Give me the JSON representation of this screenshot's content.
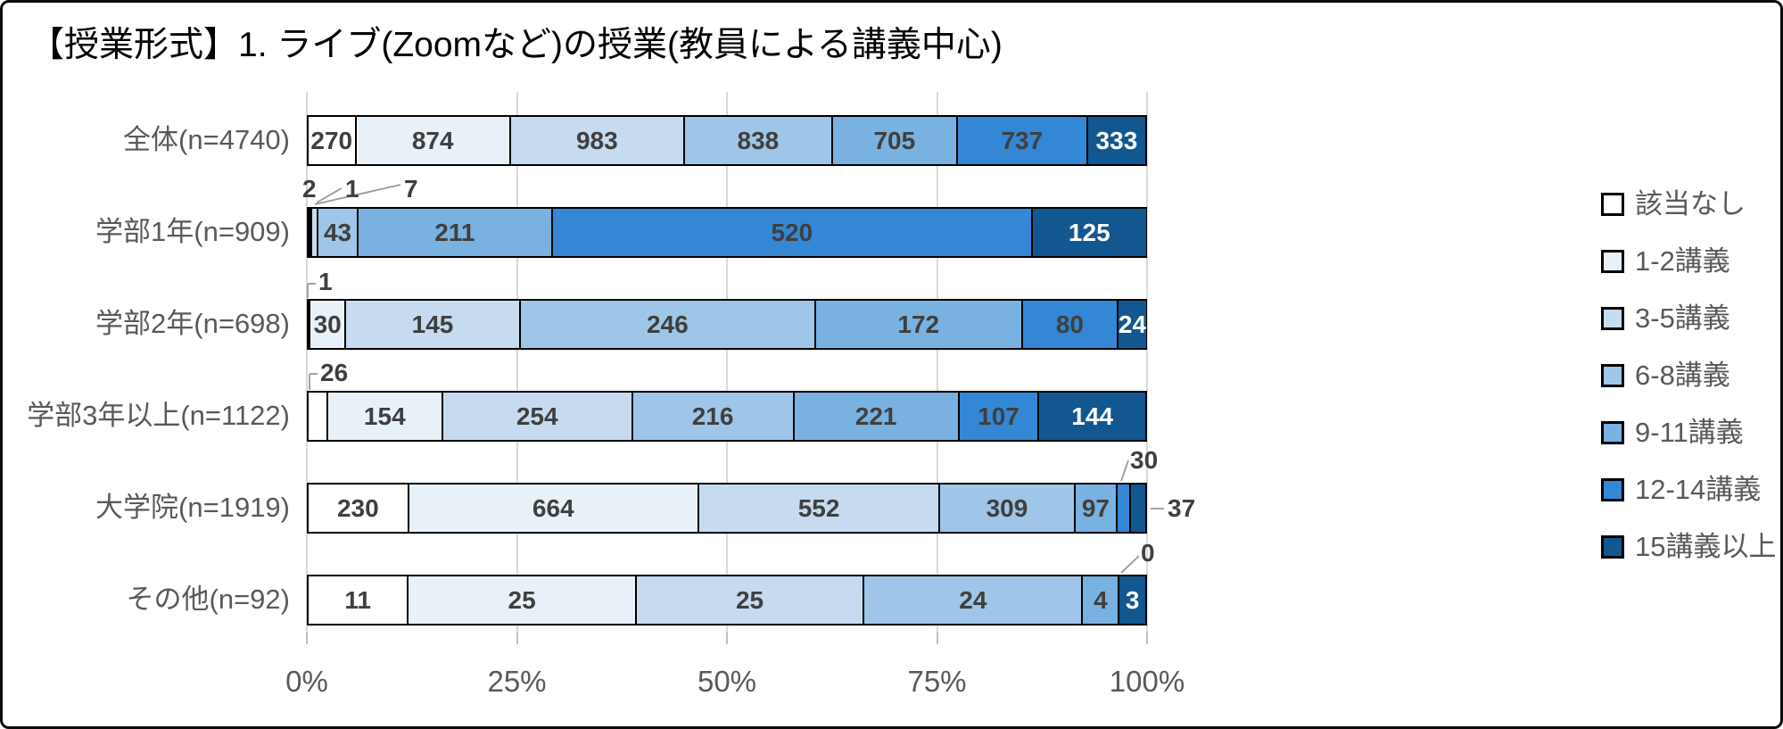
{
  "title": "【授業形式】1. ライブ(Zoomなど)の授業(教員による講義中心)",
  "chart_data": {
    "type": "bar",
    "orientation": "horizontal",
    "stacking": "100%",
    "title": "【授業形式】1. ライブ(Zoomなど)の授業(教員による講義中心)",
    "categories": [
      "全体(n=4740)",
      "学部1年(n=909)",
      "学部2年(n=698)",
      "学部3年以上(n=1122)",
      "大学院(n=1919)",
      "その他(n=92)"
    ],
    "totals": [
      4740,
      909,
      698,
      1122,
      1919,
      92
    ],
    "series": [
      {
        "name": "該当なし",
        "color": "#FFFFFF",
        "values": [
          270,
          2,
          1,
          26,
          230,
          11
        ]
      },
      {
        "name": "1-2講義",
        "color": "#E9F1F8",
        "values": [
          874,
          1,
          30,
          154,
          664,
          25
        ]
      },
      {
        "name": "3-5講義",
        "color": "#C6DBF0",
        "values": [
          983,
          7,
          145,
          254,
          552,
          25
        ]
      },
      {
        "name": "6-8講義",
        "color": "#9FC6E8",
        "values": [
          838,
          43,
          246,
          216,
          309,
          24
        ]
      },
      {
        "name": "9-11講義",
        "color": "#79B1E1",
        "values": [
          705,
          211,
          172,
          221,
          97,
          4
        ]
      },
      {
        "name": "12-14講義",
        "color": "#3387D4",
        "values": [
          737,
          520,
          80,
          107,
          30,
          0
        ]
      },
      {
        "name": "15講義以上",
        "color": "#12578F",
        "values": [
          333,
          125,
          24,
          144,
          37,
          3
        ]
      }
    ],
    "x_ticks": [
      "0%",
      "25%",
      "50%",
      "75%",
      "100%"
    ],
    "xlim": [
      0,
      100
    ],
    "grid": true,
    "legend_position": "right",
    "callout_values": [
      {
        "category": "学部1年(n=909)",
        "series": "該当なし",
        "value": 2
      },
      {
        "category": "学部1年(n=909)",
        "series": "1-2講義",
        "value": 1
      },
      {
        "category": "学部1年(n=909)",
        "series": "3-5講義",
        "value": 7
      },
      {
        "category": "学部2年(n=698)",
        "series": "該当なし",
        "value": 1
      },
      {
        "category": "学部3年以上(n=1122)",
        "series": "該当なし",
        "value": 26
      },
      {
        "category": "大学院(n=1919)",
        "series": "12-14講義",
        "value": 30
      },
      {
        "category": "大学院(n=1919)",
        "series": "15講義以上",
        "value": 37
      },
      {
        "category": "その他(n=92)",
        "series": "12-14講義",
        "value": 0
      }
    ]
  },
  "colors": {
    "grid": "#D9D9D9",
    "tick": "#BFBFBF",
    "axis_text": "#595959",
    "data_label": "#3F3F3F",
    "data_label_on_dark": "#FFFFFF",
    "frame_border": "#0A0A0A",
    "leader_line": "#999999"
  }
}
